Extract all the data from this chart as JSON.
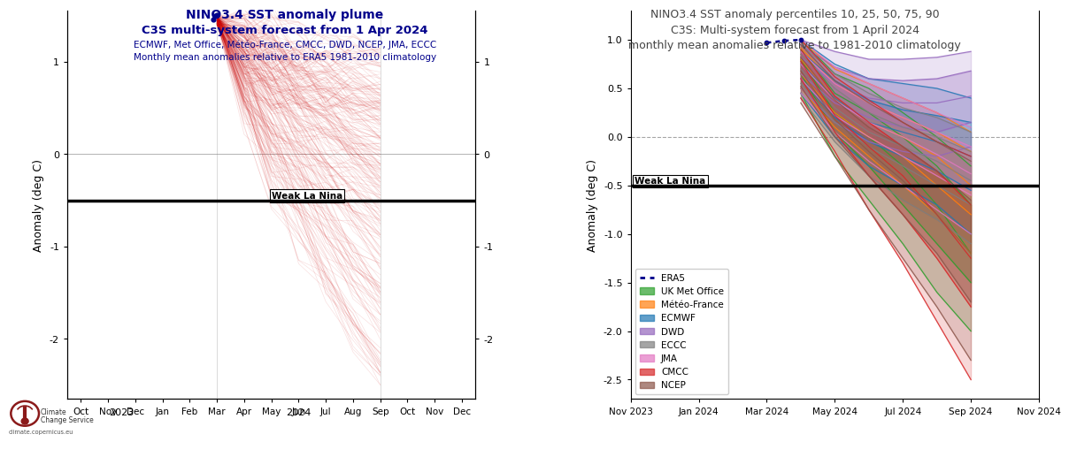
{
  "left_title1": "NINO3.4 SST anomaly plume",
  "left_title2": "C3S multi-system forecast from 1 Apr 2024",
  "left_title3": "ECMWF, Met Office, Météo-France, CMCC, DWD, NCEP, JMA, ECCC",
  "left_title4": "Monthly mean anomalies relative to ERA5 1981-2010 climatology",
  "right_title1": "NINO3.4 SST anomaly percentiles 10, 25, 50, 75, 90",
  "right_title2": "C3S: Multi-system forecast from 1 April 2024",
  "right_title3": "monthly mean anomalies relative to 1981-2010 climatology",
  "weak_la_nina_level": -0.5,
  "ylim_left": [
    -2.65,
    1.55
  ],
  "ylim_right": [
    -2.7,
    1.3
  ],
  "left_yticks": [
    -2,
    -1,
    0,
    1
  ],
  "right_yticks": [
    -2.5,
    -2.0,
    -1.5,
    -1.0,
    -0.5,
    0.0,
    0.5,
    1.0
  ],
  "background_color": "#ffffff",
  "title_color_blue": "#00008B",
  "title_color_dark": "#444444",
  "era5_color": "#00008B",
  "forecast_color": "#CC0000",
  "model_colors": [
    "#2ca02c",
    "#ff7f0e",
    "#1f77b4",
    "#9467bd",
    "#7f7f7f",
    "#e377c2",
    "#d62728",
    "#8c564b"
  ],
  "model_names": [
    "UK Met Office",
    "Météo-France",
    "ECMWF",
    "DWD",
    "ECCC",
    "JMA",
    "CMCC",
    "NCEP"
  ],
  "left_xtick_labels": [
    "Oct",
    "Nov",
    "Dec",
    "Jan",
    "Feb",
    "Mar",
    "Apr",
    "May",
    "Jun",
    "Jul",
    "Aug",
    "Sep",
    "Oct",
    "Nov",
    "Dec"
  ],
  "right_xtick_labels": [
    "Nov 2023",
    "Jan 2024",
    "Mar 2024",
    "May 2024",
    "Jul 2024",
    "Sep 2024",
    "Nov 2024"
  ],
  "logo_text1": "Climate",
  "logo_text2": "Change Service",
  "logo_text3": "climate.copernicus.eu"
}
